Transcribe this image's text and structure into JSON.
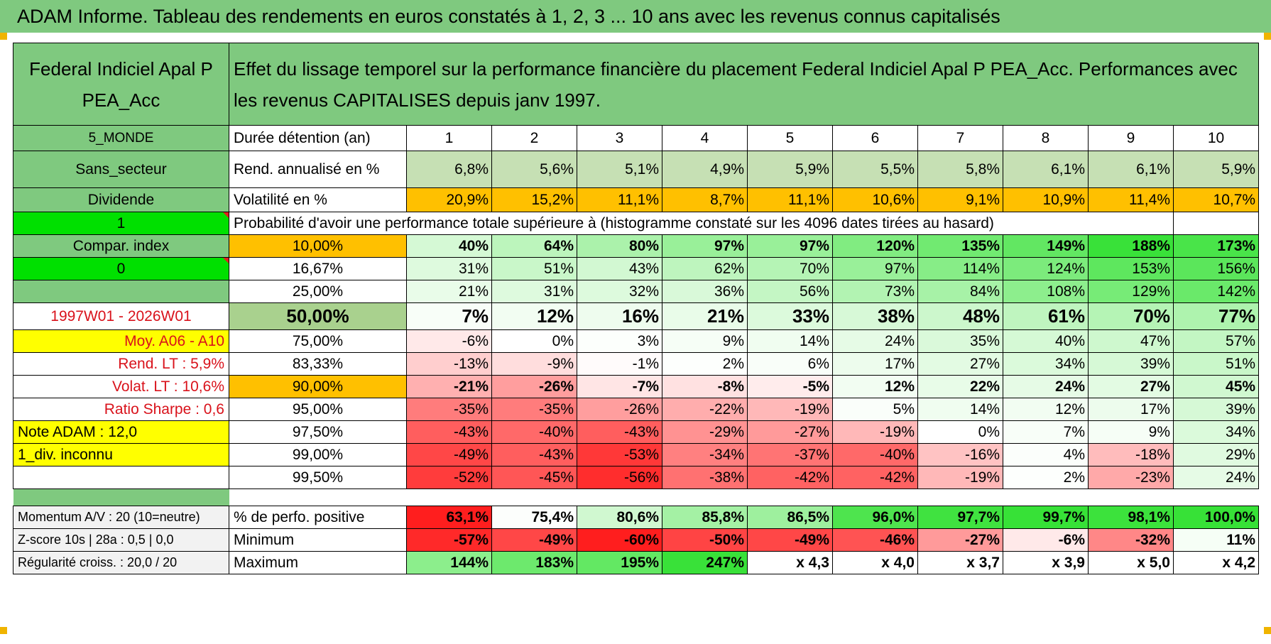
{
  "title": "ADAM Informe. Tableau des rendements en euros constatés à 1, 2, 3 ... 10 ans avec les revenus connus capitalisés",
  "header": {
    "fund_name": "Federal Indiciel Apal P PEA_Acc",
    "description": "Effet du lissage temporel sur la performance financière du placement Federal Indiciel Apal P PEA_Acc. Performances avec les revenus CAPITALISES depuis janv 1997."
  },
  "left_labels": {
    "region": "5_MONDE",
    "sector": "Sans_secteur",
    "type": "Dividende",
    "flag1": "1",
    "compar_index": "Compar. index",
    "flag0": "0",
    "blank": "",
    "period": "1997W01 - 2026W01",
    "moy": "Moy. A06 - A10",
    "rend_lt": "Rend. LT :    5,9%",
    "volat_lt": "Volat. LT :    10,6%",
    "sharpe": "Ratio Sharpe :    0,6",
    "note": "Note ADAM : 12,0",
    "div": "1_div. inconnu"
  },
  "years_label": "Durée détention (an)",
  "years": [
    "1",
    "2",
    "3",
    "4",
    "5",
    "6",
    "7",
    "8",
    "9",
    "10"
  ],
  "rend_label": "Rend. annualisé en %",
  "rend": [
    "6,8%",
    "5,6%",
    "5,1%",
    "4,9%",
    "5,9%",
    "5,5%",
    "5,8%",
    "6,1%",
    "6,1%",
    "5,9%"
  ],
  "vol_label": "Volatilité en %",
  "vol": [
    "20,9%",
    "15,2%",
    "11,1%",
    "8,7%",
    "11,1%",
    "10,6%",
    "9,1%",
    "10,9%",
    "11,4%",
    "10,7%"
  ],
  "prob_label": "Probabilité d'avoir une performance totale supérieure à (histogramme constaté sur les 4096 dates tirées au hasard)",
  "quantile_rows": [
    {
      "q": "10,00%",
      "v": [
        "40%",
        "64%",
        "80%",
        "97%",
        "97%",
        "120%",
        "135%",
        "149%",
        "188%",
        "173%"
      ]
    },
    {
      "q": "16,67%",
      "v": [
        "31%",
        "51%",
        "43%",
        "62%",
        "70%",
        "97%",
        "114%",
        "124%",
        "153%",
        "156%"
      ]
    },
    {
      "q": "25,00%",
      "v": [
        "21%",
        "31%",
        "32%",
        "36%",
        "56%",
        "73%",
        "84%",
        "108%",
        "129%",
        "142%"
      ]
    },
    {
      "q": "50,00%",
      "v": [
        "7%",
        "12%",
        "16%",
        "21%",
        "33%",
        "38%",
        "48%",
        "61%",
        "70%",
        "77%"
      ]
    },
    {
      "q": "75,00%",
      "v": [
        "-6%",
        "0%",
        "3%",
        "9%",
        "14%",
        "24%",
        "35%",
        "40%",
        "47%",
        "57%"
      ]
    },
    {
      "q": "83,33%",
      "v": [
        "-13%",
        "-9%",
        "-1%",
        "2%",
        "6%",
        "17%",
        "27%",
        "34%",
        "39%",
        "51%"
      ]
    },
    {
      "q": "90,00%",
      "v": [
        "-21%",
        "-26%",
        "-7%",
        "-8%",
        "-5%",
        "12%",
        "22%",
        "24%",
        "27%",
        "45%"
      ]
    },
    {
      "q": "95,00%",
      "v": [
        "-35%",
        "-35%",
        "-26%",
        "-22%",
        "-19%",
        "5%",
        "14%",
        "12%",
        "17%",
        "39%"
      ]
    },
    {
      "q": "97,50%",
      "v": [
        "-43%",
        "-40%",
        "-43%",
        "-29%",
        "-27%",
        "-19%",
        "0%",
        "7%",
        "9%",
        "34%"
      ]
    },
    {
      "q": "99,00%",
      "v": [
        "-49%",
        "-43%",
        "-53%",
        "-34%",
        "-37%",
        "-40%",
        "-16%",
        "4%",
        "-18%",
        "29%"
      ]
    },
    {
      "q": "99,50%",
      "v": [
        "-52%",
        "-45%",
        "-56%",
        "-38%",
        "-42%",
        "-42%",
        "-19%",
        "2%",
        "-23%",
        "24%"
      ]
    }
  ],
  "bottom_left": {
    "momentum": "Momentum A/V : 20 (10=neutre)",
    "zscore": "Z-score 10s | 28a : 0,5 | 0,0",
    "regularite": "Régularité croiss. : 20,0 / 20"
  },
  "pos_label": "% de perfo. positive",
  "pos": [
    "63,1%",
    "75,4%",
    "80,6%",
    "85,8%",
    "86,5%",
    "96,0%",
    "97,7%",
    "99,7%",
    "98,1%",
    "100,0%"
  ],
  "min_label": "Minimum",
  "min": [
    "-57%",
    "-49%",
    "-60%",
    "-50%",
    "-49%",
    "-46%",
    "-27%",
    "-6%",
    "-32%",
    "11%"
  ],
  "max_label": "Maximum",
  "max": [
    "144%",
    "183%",
    "195%",
    "247%",
    "x 4,3",
    "x 4,0",
    "x 3,7",
    "x 3,9",
    "x 5,0",
    "x 4,2"
  ],
  "colors": {
    "header_green": "#7fc97f",
    "bright_green": "#00e000",
    "yellow": "#ffff00",
    "orange": "#ffc000",
    "corner_accent": "#f0b400",
    "label_red": "#d9121b"
  }
}
